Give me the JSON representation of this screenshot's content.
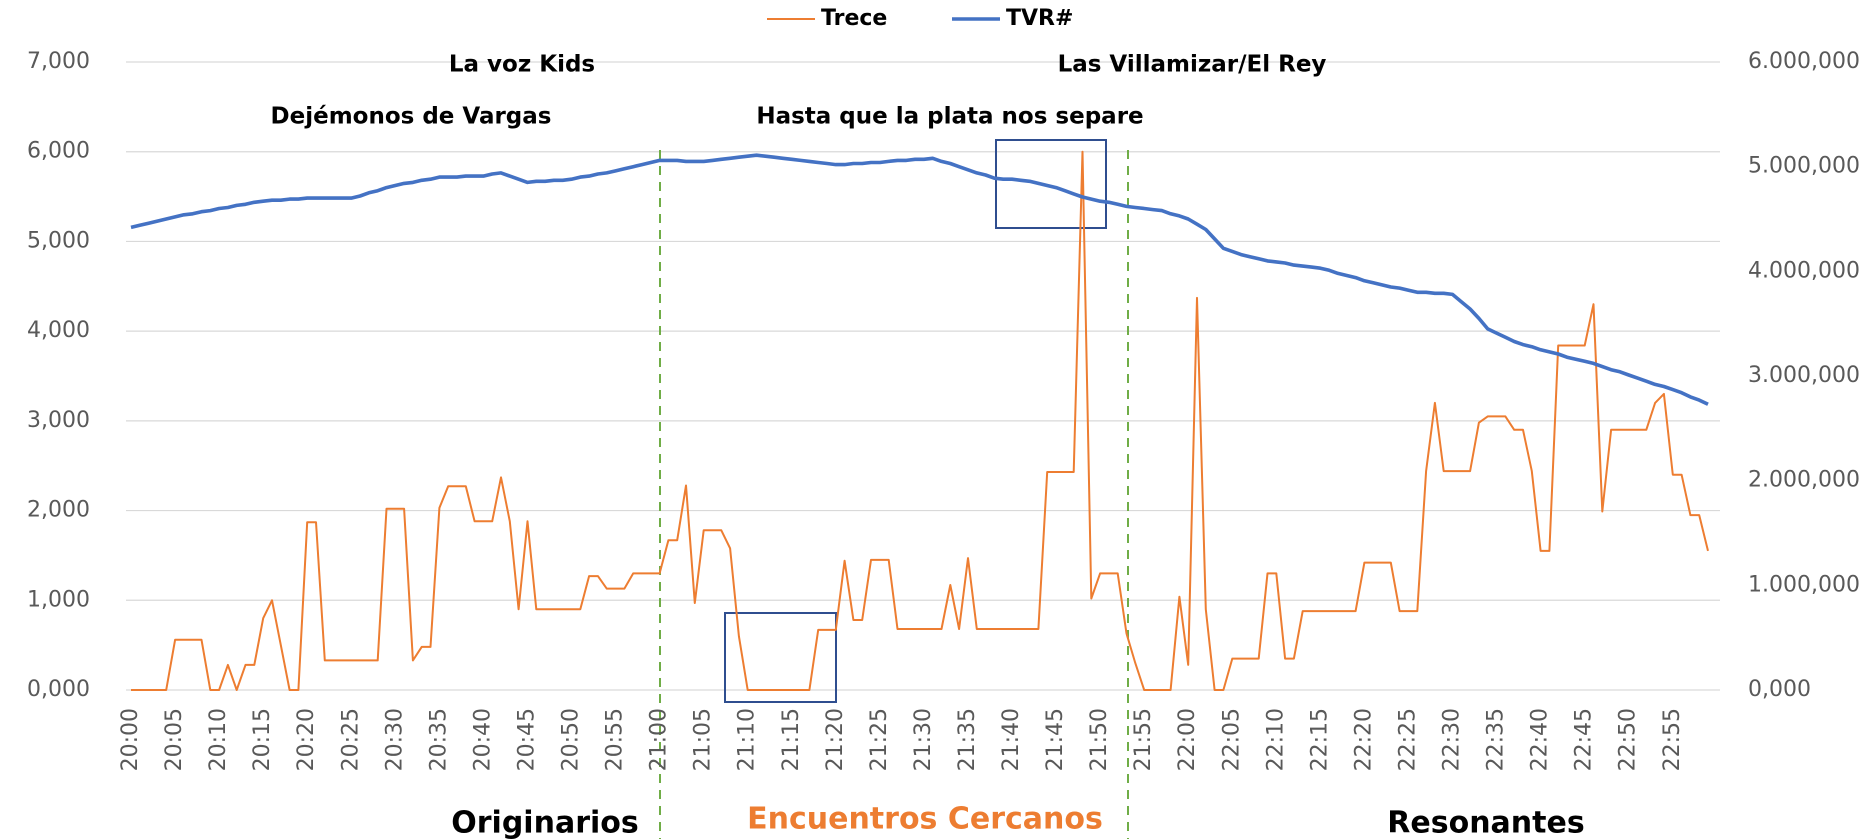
{
  "chart_data": {
    "type": "line",
    "legend": "top",
    "grid": true,
    "annotations": [
      "La voz Kids",
      "Dejémonos de Vargas",
      "Las Villamizar/El Rey",
      "Hasta que la plata nos separe",
      "Originarios",
      "Encuentros Cercanos",
      "Resonantes"
    ],
    "categories": [
      "20:00",
      null,
      null,
      null,
      null,
      "20:05",
      null,
      null,
      null,
      null,
      "20:10",
      null,
      null,
      null,
      null,
      "20:15",
      null,
      null,
      null,
      null,
      "20:20",
      null,
      null,
      null,
      null,
      "20:25",
      null,
      null,
      null,
      null,
      "20:30",
      null,
      null,
      null,
      null,
      "20:35",
      null,
      null,
      null,
      null,
      "20:40",
      null,
      null,
      null,
      null,
      "20:45",
      null,
      null,
      null,
      null,
      "20:50",
      null,
      null,
      null,
      null,
      "20:55",
      null,
      null,
      null,
      null,
      "21:00",
      null,
      null,
      null,
      null,
      "21:05",
      null,
      null,
      null,
      null,
      "21:10",
      null,
      null,
      null,
      null,
      "21:15",
      null,
      null,
      null,
      null,
      "21:20",
      null,
      null,
      null,
      null,
      "21:25",
      null,
      null,
      null,
      null,
      "21:30",
      null,
      null,
      null,
      null,
      "21:35",
      null,
      null,
      null,
      null,
      "21:40",
      null,
      null,
      null,
      null,
      "21:45",
      null,
      null,
      null,
      null,
      "21:50",
      null,
      null,
      null,
      null,
      "21:55",
      null,
      null,
      null,
      null,
      "22:00",
      null,
      null,
      null,
      null,
      "22:05",
      null,
      null,
      null,
      null,
      "22:10",
      null,
      null,
      null,
      null,
      "22:15",
      null,
      null,
      null,
      null,
      "22:20",
      null,
      null,
      null,
      null,
      "22:25",
      null,
      null,
      null,
      null,
      "22:30",
      null,
      null,
      null,
      null,
      "22:35",
      null,
      null,
      null,
      null,
      "22:40",
      null,
      null,
      null,
      null,
      "22:45",
      null,
      null,
      null,
      null,
      "22:50",
      null,
      null,
      null,
      null,
      "22:55",
      null,
      null,
      null,
      null
    ],
    "series": [
      {
        "name": "Trece",
        "color": "#ed7d31",
        "values": [
          0,
          0,
          0,
          0,
          0,
          560,
          560,
          560,
          560,
          0,
          0,
          280,
          0,
          280,
          280,
          800,
          1000,
          500,
          0,
          0,
          1870,
          1870,
          330,
          330,
          330,
          330,
          330,
          330,
          330,
          2020,
          2020,
          2020,
          330,
          480,
          480,
          2030,
          2270,
          2270,
          2270,
          1880,
          1880,
          1880,
          2370,
          1880,
          900,
          1880,
          900,
          900,
          900,
          900,
          900,
          900,
          1270,
          1270,
          1130,
          1130,
          1130,
          1300,
          1300,
          1300,
          1300,
          1670,
          1670,
          2280,
          970,
          1780,
          1780,
          1780,
          1580,
          600,
          0,
          0,
          0,
          0,
          0,
          0,
          0,
          0,
          670,
          670,
          670,
          1440,
          780,
          780,
          1450,
          1450,
          1450,
          680,
          680,
          680,
          680,
          680,
          680,
          1170,
          680,
          1470,
          680,
          680,
          680,
          680,
          680,
          680,
          680,
          680,
          2430,
          2430,
          2430,
          2430,
          6000,
          1020,
          1300,
          1300,
          1300,
          630,
          300,
          0,
          0,
          0,
          0,
          1040,
          280,
          4370,
          900,
          0,
          0,
          350,
          350,
          350,
          350,
          1300,
          1300,
          350,
          350,
          880,
          880,
          880,
          880,
          880,
          880,
          880,
          1420,
          1420,
          1420,
          1420,
          880,
          880,
          880,
          2440,
          3200,
          2440,
          2440,
          2440,
          2440,
          2980,
          3050,
          3050,
          3050,
          2900,
          2900,
          2440,
          1550,
          1550,
          3840,
          3840,
          3840,
          3840,
          4300,
          1990,
          2900,
          2900,
          2900,
          2900,
          2900,
          3200,
          3300,
          2400,
          2400,
          1950,
          1950,
          1550
        ]
      },
      {
        "name": "TVR#",
        "color": "#4472c4",
        "axis": "y2",
        "values": [
          4420000,
          4440000,
          4460000,
          4480000,
          4500000,
          4520000,
          4540000,
          4550000,
          4570000,
          4580000,
          4600000,
          4610000,
          4630000,
          4640000,
          4660000,
          4670000,
          4680000,
          4680000,
          4690000,
          4690000,
          4700000,
          4700000,
          4700000,
          4700000,
          4700000,
          4700000,
          4720000,
          4750000,
          4770000,
          4800000,
          4820000,
          4840000,
          4850000,
          4870000,
          4880000,
          4900000,
          4900000,
          4900000,
          4910000,
          4910000,
          4910000,
          4930000,
          4940000,
          4910000,
          4880000,
          4850000,
          4860000,
          4860000,
          4870000,
          4870000,
          4880000,
          4900000,
          4910000,
          4930000,
          4940000,
          4960000,
          4980000,
          5000000,
          5020000,
          5040000,
          5060000,
          5060000,
          5060000,
          5050000,
          5050000,
          5050000,
          5060000,
          5070000,
          5080000,
          5090000,
          5100000,
          5110000,
          5100000,
          5090000,
          5080000,
          5070000,
          5060000,
          5050000,
          5040000,
          5030000,
          5020000,
          5020000,
          5030000,
          5030000,
          5040000,
          5040000,
          5050000,
          5060000,
          5060000,
          5070000,
          5070000,
          5080000,
          5050000,
          5030000,
          5000000,
          4970000,
          4940000,
          4920000,
          4890000,
          4880000,
          4880000,
          4870000,
          4860000,
          4840000,
          4820000,
          4800000,
          4770000,
          4740000,
          4710000,
          4690000,
          4670000,
          4660000,
          4640000,
          4620000,
          4610000,
          4600000,
          4590000,
          4580000,
          4550000,
          4530000,
          4500000,
          4450000,
          4400000,
          4310000,
          4220000,
          4190000,
          4160000,
          4140000,
          4120000,
          4100000,
          4090000,
          4080000,
          4060000,
          4050000,
          4040000,
          4030000,
          4010000,
          3980000,
          3960000,
          3940000,
          3910000,
          3890000,
          3870000,
          3850000,
          3840000,
          3820000,
          3800000,
          3800000,
          3790000,
          3790000,
          3780000,
          3710000,
          3640000,
          3550000,
          3450000,
          3410000,
          3370000,
          3330000,
          3300000,
          3280000,
          3250000,
          3230000,
          3210000,
          3180000,
          3160000,
          3140000,
          3120000,
          3090000,
          3060000,
          3040000,
          3010000,
          2980000,
          2950000,
          2920000,
          2900000,
          2870000,
          2840000,
          2800000,
          2770000,
          2730000
        ]
      }
    ],
    "ylim": [
      0,
      7000
    ],
    "yticks": [
      {
        "value": 0,
        "label": "0,000"
      },
      {
        "value": 1000,
        "label": "1,000"
      },
      {
        "value": 2000,
        "label": "2,000"
      },
      {
        "value": 3000,
        "label": "3,000"
      },
      {
        "value": 4000,
        "label": "4,000"
      },
      {
        "value": 5000,
        "label": "5,000"
      },
      {
        "value": 6000,
        "label": "6,000"
      },
      {
        "value": 7000,
        "label": "7,000"
      }
    ],
    "y2lim": [
      0,
      6000000
    ],
    "y2ticks": [
      {
        "value": 0,
        "label": "0,000"
      },
      {
        "value": 1000000,
        "label": "1.000,000"
      },
      {
        "value": 2000000,
        "label": "2.000,000"
      },
      {
        "value": 3000000,
        "label": "3.000,000"
      },
      {
        "value": 4000000,
        "label": "4.000,000"
      },
      {
        "value": 5000000,
        "label": "5.000,000"
      },
      {
        "value": 6000000,
        "label": "6.000,000"
      }
    ]
  }
}
